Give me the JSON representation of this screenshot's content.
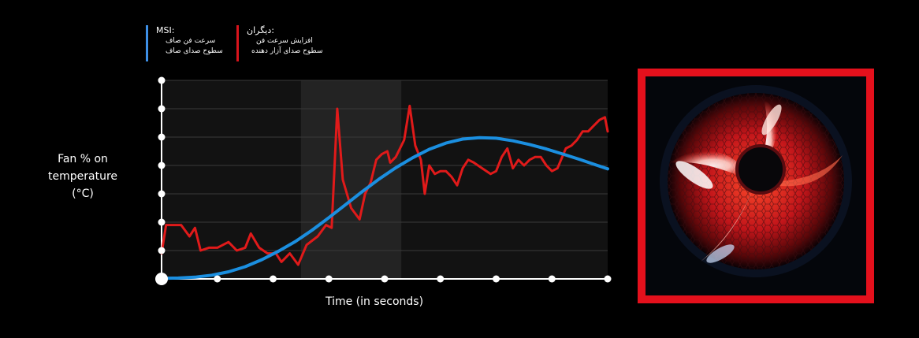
{
  "legend": {
    "msi": {
      "title": "MSI:",
      "items": [
        "سرعت فن صاف",
        "سطوح صدای صاف"
      ],
      "color": "#3d8fe6"
    },
    "others": {
      "title": "دیگران:",
      "items": [
        "افزایش سرعت فن",
        "سطوح صدای آزار دهنده"
      ],
      "color": "#d8141c"
    }
  },
  "chart_data": {
    "type": "line",
    "ylabel": "Fan % on temperature (°C)",
    "xlabel": "Time (in seconds)",
    "x_range": [
      0,
      8
    ],
    "y_range": [
      0,
      7
    ],
    "grid": true,
    "highlight_x_range": [
      2.5,
      4.3
    ],
    "series": [
      {
        "name": "MSI",
        "color": "#1b8fe0",
        "points": [
          [
            0,
            0.02
          ],
          [
            0.3,
            0.03
          ],
          [
            0.6,
            0.06
          ],
          [
            0.9,
            0.13
          ],
          [
            1.2,
            0.25
          ],
          [
            1.5,
            0.43
          ],
          [
            1.8,
            0.68
          ],
          [
            2.1,
            0.98
          ],
          [
            2.4,
            1.32
          ],
          [
            2.7,
            1.72
          ],
          [
            3.0,
            2.16
          ],
          [
            3.3,
            2.62
          ],
          [
            3.6,
            3.08
          ],
          [
            3.9,
            3.52
          ],
          [
            4.2,
            3.92
          ],
          [
            4.5,
            4.27
          ],
          [
            4.8,
            4.57
          ],
          [
            5.1,
            4.79
          ],
          [
            5.4,
            4.93
          ],
          [
            5.7,
            4.98
          ],
          [
            6.0,
            4.96
          ],
          [
            6.3,
            4.87
          ],
          [
            6.6,
            4.74
          ],
          [
            6.9,
            4.58
          ],
          [
            7.2,
            4.4
          ],
          [
            7.5,
            4.21
          ],
          [
            7.8,
            4.01
          ],
          [
            8.0,
            3.88
          ]
        ]
      },
      {
        "name": "others",
        "color": "#e01a1a",
        "points": [
          [
            0,
            0.9
          ],
          [
            0.08,
            1.9
          ],
          [
            0.35,
            1.9
          ],
          [
            0.5,
            1.5
          ],
          [
            0.6,
            1.8
          ],
          [
            0.7,
            1.0
          ],
          [
            0.85,
            1.1
          ],
          [
            1.0,
            1.1
          ],
          [
            1.2,
            1.3
          ],
          [
            1.35,
            1.0
          ],
          [
            1.5,
            1.1
          ],
          [
            1.6,
            1.6
          ],
          [
            1.75,
            1.1
          ],
          [
            1.9,
            0.9
          ],
          [
            2.05,
            0.9
          ],
          [
            2.15,
            0.6
          ],
          [
            2.3,
            0.9
          ],
          [
            2.45,
            0.5
          ],
          [
            2.6,
            1.2
          ],
          [
            2.8,
            1.5
          ],
          [
            2.95,
            1.9
          ],
          [
            3.05,
            1.8
          ],
          [
            3.15,
            6.0
          ],
          [
            3.25,
            3.5
          ],
          [
            3.4,
            2.5
          ],
          [
            3.55,
            2.1
          ],
          [
            3.65,
            3.0
          ],
          [
            3.75,
            3.4
          ],
          [
            3.85,
            4.2
          ],
          [
            3.95,
            4.4
          ],
          [
            4.05,
            4.5
          ],
          [
            4.1,
            4.1
          ],
          [
            4.2,
            4.3
          ],
          [
            4.35,
            4.9
          ],
          [
            4.45,
            6.1
          ],
          [
            4.55,
            4.7
          ],
          [
            4.65,
            4.2
          ],
          [
            4.72,
            3.0
          ],
          [
            4.8,
            4.0
          ],
          [
            4.9,
            3.7
          ],
          [
            5.0,
            3.8
          ],
          [
            5.1,
            3.8
          ],
          [
            5.2,
            3.6
          ],
          [
            5.3,
            3.3
          ],
          [
            5.4,
            3.9
          ],
          [
            5.5,
            4.2
          ],
          [
            5.6,
            4.1
          ],
          [
            5.75,
            3.9
          ],
          [
            5.9,
            3.7
          ],
          [
            6.0,
            3.8
          ],
          [
            6.1,
            4.3
          ],
          [
            6.2,
            4.6
          ],
          [
            6.3,
            3.9
          ],
          [
            6.4,
            4.2
          ],
          [
            6.5,
            4.0
          ],
          [
            6.6,
            4.2
          ],
          [
            6.7,
            4.3
          ],
          [
            6.8,
            4.3
          ],
          [
            6.9,
            4.0
          ],
          [
            7.0,
            3.8
          ],
          [
            7.1,
            3.9
          ],
          [
            7.25,
            4.6
          ],
          [
            7.35,
            4.7
          ],
          [
            7.45,
            4.9
          ],
          [
            7.55,
            5.2
          ],
          [
            7.65,
            5.2
          ],
          [
            7.75,
            5.4
          ],
          [
            7.85,
            5.6
          ],
          [
            7.95,
            5.7
          ],
          [
            8.0,
            5.2
          ]
        ]
      }
    ]
  },
  "fan_image": {
    "icon": "red-led-fan-photo",
    "frame_color": "#e4101c"
  }
}
